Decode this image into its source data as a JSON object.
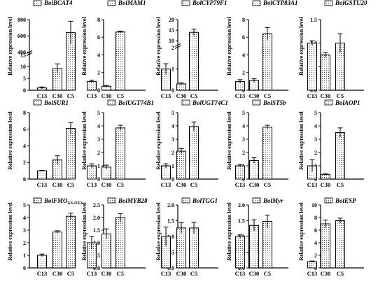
{
  "chart_data": [
    {
      "type": "bar",
      "title": "BolBCAT4",
      "ylabel": "Relative expression level",
      "categories": [
        "C13",
        "C30",
        "C5"
      ],
      "values": [
        1,
        9.2,
        640
      ],
      "errors": [
        0.4,
        2.0,
        140
      ],
      "yticks": [
        0,
        5,
        10,
        15,
        400,
        600,
        800
      ],
      "ylim": [
        0,
        800
      ],
      "axis_break": {
        "lower": [
          0,
          15
        ],
        "upper": [
          400,
          800
        ]
      }
    },
    {
      "type": "bar",
      "title": "BolMAM1",
      "ylabel": "Relative expression level",
      "categories": [
        "C13",
        "C30",
        "C5"
      ],
      "values": [
        1.0,
        0.45,
        6.6
      ],
      "errors": [
        0.15,
        0.1,
        0.1
      ],
      "yticks": [
        0,
        2,
        4,
        6,
        8
      ],
      "ylim": [
        0,
        8
      ]
    },
    {
      "type": "bar",
      "title": "BolCYP79F1",
      "ylabel": "Relative expression level",
      "categories": [
        "C13",
        "C30",
        "C5"
      ],
      "values": [
        1.0,
        0.3,
        14
      ],
      "errors": [
        0.25,
        0.05,
        1.5
      ],
      "yticks": [
        0,
        1,
        2,
        10,
        15,
        20
      ],
      "ylim": [
        0,
        20
      ],
      "axis_break": {
        "lower": [
          0,
          2
        ],
        "upper": [
          8,
          20
        ]
      }
    },
    {
      "type": "bar",
      "title": "BolCYP83A1",
      "ylabel": "Relative expression level",
      "categories": [
        "C13",
        "C30",
        "C5"
      ],
      "values": [
        1.0,
        1.1,
        6.4
      ],
      "errors": [
        0.2,
        0.2,
        0.7
      ],
      "yticks": [
        0,
        2,
        4,
        6,
        8
      ],
      "ylim": [
        0,
        8
      ]
    },
    {
      "type": "bar",
      "title": "BolGSTU20",
      "ylabel": "Relative expression level",
      "categories": [
        "C13",
        "C30",
        "C5"
      ],
      "values": [
        1.0,
        0.75,
        1.0
      ],
      "errors": [
        0.05,
        0.05,
        0.2
      ],
      "yticks": [
        0.0,
        0.5,
        1.0,
        1.5
      ],
      "ylim": [
        0,
        1.5
      ]
    },
    {
      "type": "bar",
      "title": "BolSUR1",
      "ylabel": "Relative expression level",
      "categories": [
        "C13",
        "C30",
        "C5"
      ],
      "values": [
        1.0,
        2.3,
        6.1
      ],
      "errors": [
        0.05,
        0.5,
        0.7
      ],
      "yticks": [
        0,
        2,
        4,
        6,
        8
      ],
      "ylim": [
        0,
        8
      ]
    },
    {
      "type": "bar",
      "title": "BolUGT74B1",
      "ylabel": "Relative expression level",
      "categories": [
        "C13",
        "C30",
        "C5"
      ],
      "values": [
        1.0,
        0.9,
        3.85
      ],
      "errors": [
        0.15,
        0.15,
        0.2
      ],
      "yticks": [
        0,
        1,
        2,
        3,
        4,
        5
      ],
      "ylim": [
        0,
        5
      ]
    },
    {
      "type": "bar",
      "title": "BolUGT74C1",
      "ylabel": "Relative expression level",
      "categories": [
        "C13",
        "C30",
        "C5"
      ],
      "values": [
        1.0,
        2.1,
        3.95
      ],
      "errors": [
        0.15,
        0.2,
        0.35
      ],
      "yticks": [
        0,
        1,
        2,
        3,
        4,
        5
      ],
      "ylim": [
        0,
        5
      ]
    },
    {
      "type": "bar",
      "title": "BolST5b",
      "ylabel": "Relative expression level",
      "categories": [
        "C13",
        "C30",
        "C5"
      ],
      "values": [
        1.0,
        1.4,
        3.9
      ],
      "errors": [
        0.1,
        0.2,
        0.15
      ],
      "yticks": [
        0,
        1,
        2,
        3,
        4,
        5
      ],
      "ylim": [
        0,
        5
      ]
    },
    {
      "type": "bar",
      "title": "BolAOP1",
      "ylabel": "Relative expression level",
      "categories": [
        "C13",
        "C30",
        "C5"
      ],
      "values": [
        1.0,
        0.35,
        3.5
      ],
      "errors": [
        0.45,
        0.05,
        0.35
      ],
      "yticks": [
        0,
        1,
        2,
        3,
        4,
        5
      ],
      "ylim": [
        0,
        5
      ]
    },
    {
      "type": "bar",
      "title": "BolFMO",
      "title_sub": "GS-OX2",
      "ylabel": "Relative expression level",
      "categories": [
        "C13",
        "C30",
        "C5"
      ],
      "values": [
        1.0,
        2.85,
        4.1
      ],
      "errors": [
        0.1,
        0.1,
        0.25
      ],
      "yticks": [
        0,
        1,
        2,
        3,
        4,
        5
      ],
      "ylim": [
        0,
        5
      ]
    },
    {
      "type": "bar",
      "title": "BolMYB28",
      "ylabel": "Relative expression level",
      "categories": [
        "C13",
        "C30",
        "C5"
      ],
      "values": [
        1.0,
        1.35,
        2.0
      ],
      "errors": [
        0.25,
        0.2,
        0.15
      ],
      "yticks": [
        0.0,
        0.5,
        1.0,
        1.5,
        2.0,
        2.5
      ],
      "ylim": [
        0,
        2.5
      ]
    },
    {
      "type": "bar",
      "title": "BolTGG1",
      "ylabel": "Relative expression level",
      "categories": [
        "C13",
        "C30",
        "C5"
      ],
      "values": [
        1.0,
        1.27,
        1.27
      ],
      "errors": [
        0.3,
        0.17,
        0.18
      ],
      "yticks": [
        0.0,
        0.5,
        1.0,
        1.5,
        2.0
      ],
      "ylim": [
        0,
        2.0
      ]
    },
    {
      "type": "bar",
      "title": "BolMyr",
      "ylabel": "Relative expression level",
      "categories": [
        "C13",
        "C30",
        "C5"
      ],
      "values": [
        1.0,
        1.35,
        1.48
      ],
      "errors": [
        0.05,
        0.18,
        0.2
      ],
      "yticks": [
        0.0,
        0.5,
        1.0,
        1.5,
        2.0
      ],
      "ylim": [
        0,
        2.0
      ]
    },
    {
      "type": "bar",
      "title": "BolESP",
      "ylabel": "Relative expression level",
      "categories": [
        "C13",
        "C30",
        "C5"
      ],
      "values": [
        1.0,
        7.0,
        7.5
      ],
      "errors": [
        0.1,
        0.6,
        0.4
      ],
      "yticks": [
        0,
        2,
        4,
        6,
        8,
        10
      ],
      "ylim": [
        0,
        10
      ]
    }
  ]
}
